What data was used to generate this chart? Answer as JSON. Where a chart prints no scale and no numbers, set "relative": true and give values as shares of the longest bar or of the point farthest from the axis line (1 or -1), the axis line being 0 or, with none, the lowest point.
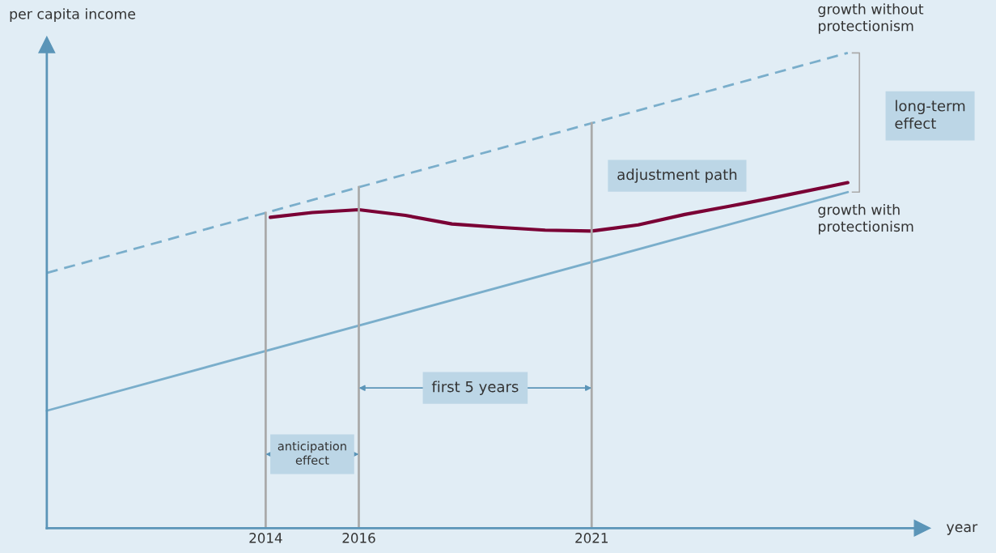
{
  "chart_data": {
    "type": "line",
    "relative": true,
    "xlabel": "year",
    "ylabel": "per capita income",
    "xlim": [
      2009.3,
      2028.1
    ],
    "xticks": [
      2014,
      2016,
      2021
    ],
    "grid": false,
    "legend": false,
    "marker": "none",
    "series": [
      {
        "name": "growth without protectionism",
        "color": "#7aaecb",
        "line_style": "dashed",
        "x": [
          2009.3,
          2026.5
        ],
        "values": [
          0.537,
          1.0
        ]
      },
      {
        "name": "growth with protectionism",
        "color": "#7aaecb",
        "line_style": "solid",
        "x": [
          2009.3,
          2026.5
        ],
        "values": [
          0.247,
          0.707
        ]
      },
      {
        "color": "#7a0035",
        "line_style": "solid",
        "x": [
          2014.1,
          2015,
          2016,
          2017,
          2018,
          2019,
          2020,
          2021,
          2022,
          2023,
          2024,
          2025,
          2026.5
        ],
        "values": [
          0.654,
          0.664,
          0.67,
          0.658,
          0.64,
          0.633,
          0.627,
          0.625,
          0.638,
          0.66,
          0.678,
          0.697,
          0.727
        ]
      }
    ],
    "ref_lines": [
      {
        "axis": "x",
        "value": 2014,
        "color": "#aaaaaa"
      },
      {
        "axis": "x",
        "value": 2016,
        "color": "#aaaaaa"
      },
      {
        "axis": "x",
        "value": 2021,
        "color": "#aaaaaa"
      }
    ],
    "annotations": [
      "anticipation\neffect",
      "first 5 years",
      "adjustment path",
      "long-term\neffect"
    ]
  }
}
